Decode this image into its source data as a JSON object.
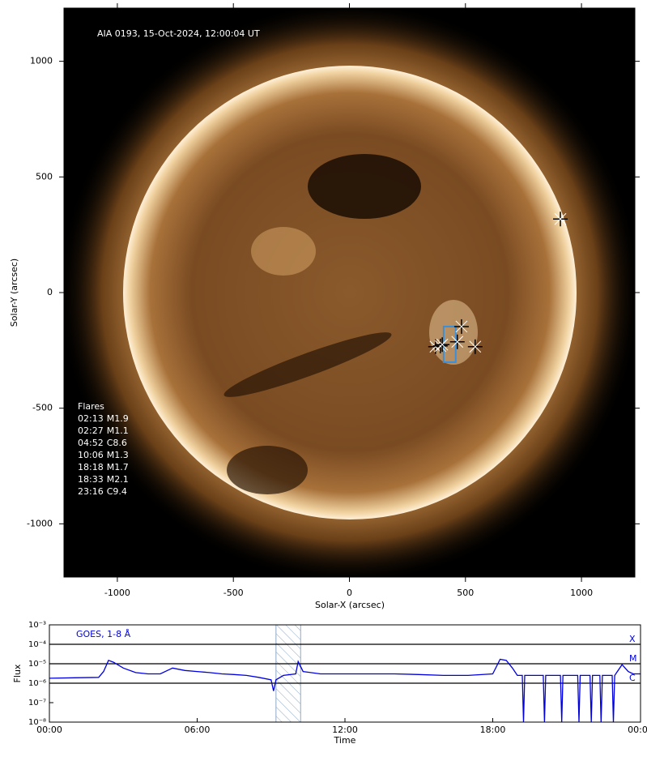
{
  "chart_data": [
    {
      "type": "image",
      "title": "AIA 0193, 15-Oct-2024, 12:00:04 UT",
      "xlabel": "Solar-X (arcsec)",
      "ylabel": "Solar-Y (arcsec)",
      "xlim": [
        -1230,
        1230
      ],
      "ylim": [
        -1230,
        1230
      ],
      "xticks": [
        -1000,
        -500,
        0,
        500,
        1000
      ],
      "yticks": [
        -1000,
        -500,
        0,
        500,
        1000
      ],
      "annotation_title": "Flares",
      "flares": [
        {
          "time": "02:13",
          "class": "M1.9",
          "x": 909,
          "y": 318
        },
        {
          "time": "02:27",
          "class": "M1.1",
          "x": 483,
          "y": -147
        },
        {
          "time": "04:52",
          "class": "C8.6",
          "x": 371,
          "y": -234
        },
        {
          "time": "10:06",
          "class": "M1.3",
          "x": 465,
          "y": -213
        },
        {
          "time": "18:18",
          "class": "M1.7",
          "x": 392,
          "y": -231
        },
        {
          "time": "18:33",
          "class": "M2.1",
          "x": 542,
          "y": -234
        },
        {
          "time": "23:16",
          "class": "C9.4",
          "x": 400,
          "y": -225
        }
      ],
      "box": {
        "x": [
          406,
          458
        ],
        "y": [
          -301,
          -147
        ],
        "color": "#3a8fd8"
      }
    },
    {
      "type": "line",
      "log_y": true,
      "legend_text": "GOES, 1-8 Å",
      "xlabel": "Time",
      "ylabel": "Flux",
      "xlim": [
        0,
        24
      ],
      "ylim": [
        1e-08,
        0.001
      ],
      "xticks": [
        {
          "value": 0,
          "label": "00:00"
        },
        {
          "value": 6,
          "label": "06:00"
        },
        {
          "value": 12,
          "label": "12:00"
        },
        {
          "value": 18,
          "label": "18:00"
        },
        {
          "value": 24,
          "label": "00:00"
        }
      ],
      "yticks": [
        {
          "value": 0.001,
          "label": "10⁻³"
        },
        {
          "value": 0.0001,
          "label": "10⁻⁴"
        },
        {
          "value": 1e-05,
          "label": "10⁻⁵"
        },
        {
          "value": 1e-06,
          "label": "10⁻⁶"
        },
        {
          "value": 1e-07,
          "label": "10⁻⁷"
        },
        {
          "value": 1e-08,
          "label": "10⁻⁸"
        }
      ],
      "levels": [
        {
          "value": 0.0001,
          "label": "X"
        },
        {
          "value": 1e-05,
          "label": "M"
        },
        {
          "value": 1e-06,
          "label": "C"
        }
      ],
      "span": [
        9.2,
        10.2
      ],
      "x": [
        0,
        1,
        2,
        2.2,
        2.4,
        2.6,
        3,
        3.5,
        4,
        4.5,
        4.87,
        5,
        5.5,
        6,
        6.5,
        7,
        7.5,
        8,
        8.5,
        9,
        9.1,
        9.2,
        9.5,
        10,
        10.1,
        10.3,
        11,
        12,
        13,
        14,
        15,
        16,
        17,
        18,
        18.3,
        18.55,
        18.8,
        19,
        19.2,
        19.25,
        19.3,
        20.05,
        20.1,
        20.15,
        20.75,
        20.8,
        20.85,
        21.45,
        21.5,
        21.55,
        21.95,
        22,
        22.05,
        22.35,
        22.4,
        22.45,
        22.85,
        22.9,
        22.95,
        23.25,
        23.5,
        23.7,
        24
      ],
      "series": [
        {
          "name": "GOES, 1-8 Å",
          "color": "#0000e0",
          "values": [
            1.8e-06,
            1.9e-06,
            2e-06,
            4e-06,
            1.5e-05,
            1.2e-05,
            6e-06,
            3.5e-06,
            3e-06,
            3e-06,
            5e-06,
            6e-06,
            4.5e-06,
            4e-06,
            3.5e-06,
            3e-06,
            2.8e-06,
            2.5e-06,
            2e-06,
            1.5e-06,
            4e-07,
            1.5e-06,
            2.5e-06,
            3e-06,
            1.3e-05,
            4e-06,
            3e-06,
            3e-06,
            3e-06,
            3e-06,
            2.8e-06,
            2.5e-06,
            2.5e-06,
            3e-06,
            1.7e-05,
            1.5e-05,
            6e-06,
            2.5e-06,
            2.5e-06,
            1e-08,
            2.5e-06,
            2.5e-06,
            1e-08,
            2.5e-06,
            2.5e-06,
            1e-08,
            2.5e-06,
            2.5e-06,
            1e-08,
            2.5e-06,
            2.5e-06,
            1e-08,
            2.5e-06,
            2.5e-06,
            1e-08,
            2.5e-06,
            2.5e-06,
            1e-08,
            2.5e-06,
            9e-06,
            4e-06,
            3e-06,
            3e-06
          ]
        }
      ]
    }
  ]
}
